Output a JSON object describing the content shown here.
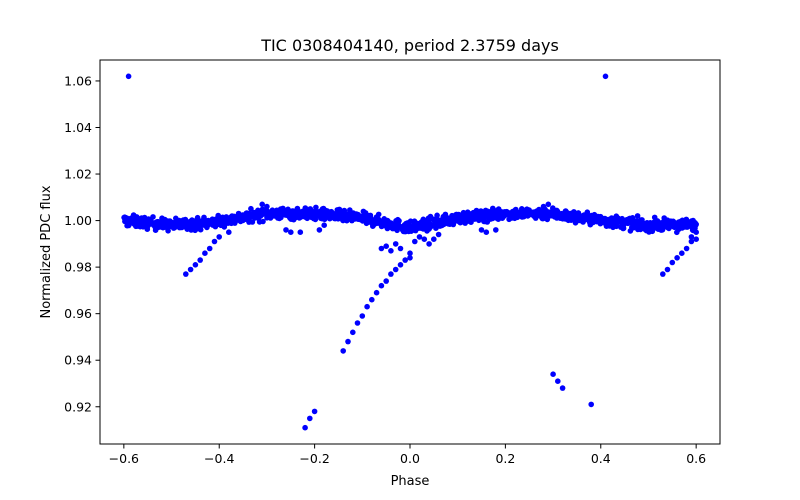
{
  "chart_data": {
    "type": "scatter",
    "title": "TIC 0308404140, period 2.3759 days",
    "xlabel": "Phase",
    "ylabel": "Normalized PDC flux",
    "xlim": [
      -0.65,
      0.65
    ],
    "ylim": [
      0.904,
      1.069
    ],
    "xticks": [
      -0.6,
      -0.4,
      -0.2,
      0.0,
      0.2,
      0.4,
      0.6
    ],
    "xtick_labels": [
      "−0.6",
      "−0.4",
      "−0.2",
      "0.0",
      "0.2",
      "0.4",
      "0.6"
    ],
    "yticks": [
      0.92,
      0.94,
      0.96,
      0.98,
      1.0,
      1.02,
      1.04,
      1.06
    ],
    "ytick_labels": [
      "0.92",
      "0.94",
      "0.96",
      "0.98",
      "1.00",
      "1.02",
      "1.04",
      "1.06"
    ],
    "grid": false,
    "marker_color": "#0000ff",
    "baseline": {
      "phase_range": [
        -0.6,
        0.6
      ],
      "trend_x": [
        -0.6,
        -0.5,
        -0.42,
        -0.3,
        -0.2,
        -0.1,
        0.0,
        0.1,
        0.2,
        0.3,
        0.4,
        0.5,
        0.6
      ],
      "trend_y": [
        1.0,
        0.998,
        0.999,
        1.003,
        1.003,
        1.001,
        0.997,
        1.001,
        1.003,
        1.003,
        1.0,
        0.998,
        0.998
      ],
      "scatter": 0.0022
    },
    "points": [
      {
        "x": -0.59,
        "y": 1.062
      },
      {
        "x": 0.41,
        "y": 1.062
      },
      {
        "x": -0.47,
        "y": 0.977
      },
      {
        "x": -0.46,
        "y": 0.979
      },
      {
        "x": -0.45,
        "y": 0.981
      },
      {
        "x": -0.44,
        "y": 0.983
      },
      {
        "x": -0.43,
        "y": 0.986
      },
      {
        "x": -0.42,
        "y": 0.988
      },
      {
        "x": -0.41,
        "y": 0.991
      },
      {
        "x": -0.4,
        "y": 0.993
      },
      {
        "x": -0.38,
        "y": 0.995
      },
      {
        "x": -0.26,
        "y": 0.996
      },
      {
        "x": -0.25,
        "y": 0.995
      },
      {
        "x": -0.23,
        "y": 0.995
      },
      {
        "x": -0.22,
        "y": 0.911
      },
      {
        "x": -0.21,
        "y": 0.915
      },
      {
        "x": -0.2,
        "y": 0.918
      },
      {
        "x": -0.19,
        "y": 0.996
      },
      {
        "x": -0.18,
        "y": 0.998
      },
      {
        "x": -0.14,
        "y": 0.944
      },
      {
        "x": -0.13,
        "y": 0.948
      },
      {
        "x": -0.12,
        "y": 0.952
      },
      {
        "x": -0.11,
        "y": 0.956
      },
      {
        "x": -0.1,
        "y": 0.959
      },
      {
        "x": -0.09,
        "y": 0.963
      },
      {
        "x": -0.08,
        "y": 0.966
      },
      {
        "x": -0.07,
        "y": 0.969
      },
      {
        "x": -0.06,
        "y": 0.972
      },
      {
        "x": -0.05,
        "y": 0.974
      },
      {
        "x": -0.04,
        "y": 0.977
      },
      {
        "x": -0.03,
        "y": 0.979
      },
      {
        "x": -0.02,
        "y": 0.981
      },
      {
        "x": -0.01,
        "y": 0.983
      },
      {
        "x": 0.0,
        "y": 0.984
      },
      {
        "x": 0.0,
        "y": 0.986
      },
      {
        "x": -0.06,
        "y": 0.988
      },
      {
        "x": -0.05,
        "y": 0.989
      },
      {
        "x": -0.04,
        "y": 0.987
      },
      {
        "x": -0.03,
        "y": 0.99
      },
      {
        "x": -0.02,
        "y": 0.988
      },
      {
        "x": 0.01,
        "y": 0.991
      },
      {
        "x": 0.02,
        "y": 0.993
      },
      {
        "x": 0.03,
        "y": 0.992
      },
      {
        "x": 0.04,
        "y": 0.99
      },
      {
        "x": 0.05,
        "y": 0.992
      },
      {
        "x": 0.06,
        "y": 0.994
      },
      {
        "x": 0.15,
        "y": 0.996
      },
      {
        "x": 0.16,
        "y": 0.995
      },
      {
        "x": 0.18,
        "y": 0.996
      },
      {
        "x": 0.3,
        "y": 0.934
      },
      {
        "x": 0.31,
        "y": 0.931
      },
      {
        "x": 0.32,
        "y": 0.928
      },
      {
        "x": 0.38,
        "y": 0.921
      },
      {
        "x": 0.53,
        "y": 0.977
      },
      {
        "x": 0.54,
        "y": 0.979
      },
      {
        "x": 0.55,
        "y": 0.982
      },
      {
        "x": 0.56,
        "y": 0.984
      },
      {
        "x": 0.57,
        "y": 0.986
      },
      {
        "x": 0.58,
        "y": 0.988
      },
      {
        "x": 0.59,
        "y": 0.991
      },
      {
        "x": 0.59,
        "y": 0.993
      },
      {
        "x": 0.6,
        "y": 0.992
      },
      {
        "x": 0.6,
        "y": 0.995
      },
      {
        "x": -0.31,
        "y": 1.007
      },
      {
        "x": 0.29,
        "y": 1.007
      },
      {
        "x": -0.3,
        "y": 1.006
      },
      {
        "x": 0.28,
        "y": 1.006
      }
    ]
  }
}
